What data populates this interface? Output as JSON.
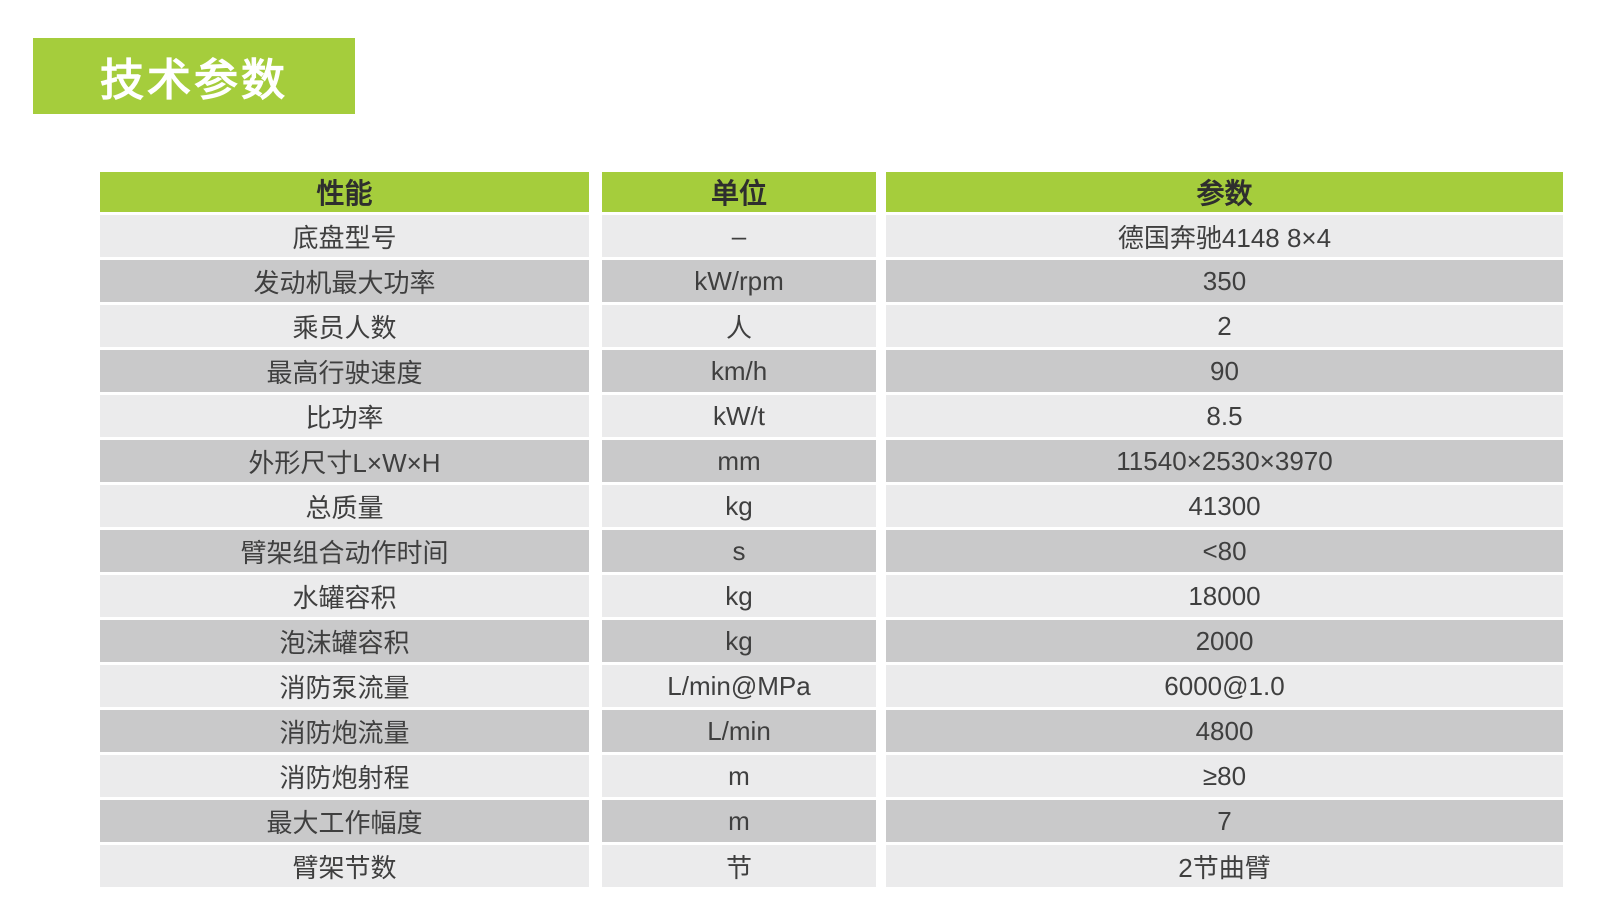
{
  "title_banner": {
    "label": "技术参数"
  },
  "colors": {
    "accent_green": "#a5cd3c",
    "row_light": "#ebebec",
    "row_dark": "#c9c9ca",
    "header_text": "#2e2e2e",
    "body_text": "#3f3f3f",
    "title_text": "#ffffff"
  },
  "table": {
    "headers": [
      "性能",
      "单位",
      "参数"
    ],
    "rows": [
      {
        "performance": "底盘型号",
        "unit": "–",
        "value": "德国奔驰4148 8×4"
      },
      {
        "performance": "发动机最大功率",
        "unit": "kW/rpm",
        "value": "350"
      },
      {
        "performance": "乘员人数",
        "unit": "人",
        "value": "2"
      },
      {
        "performance": "最高行驶速度",
        "unit": "km/h",
        "value": "90"
      },
      {
        "performance": "比功率",
        "unit": "kW/t",
        "value": "8.5"
      },
      {
        "performance": "外形尺寸L×W×H",
        "unit": "mm",
        "value": "11540×2530×3970"
      },
      {
        "performance": "总质量",
        "unit": "kg",
        "value": "41300"
      },
      {
        "performance": "臂架组合动作时间",
        "unit": "s",
        "value": "<80"
      },
      {
        "performance": "水罐容积",
        "unit": "kg",
        "value": "18000"
      },
      {
        "performance": "泡沫罐容积",
        "unit": "kg",
        "value": "2000"
      },
      {
        "performance": "消防泵流量",
        "unit": "L/min@MPa",
        "value": "6000@1.0"
      },
      {
        "performance": "消防炮流量",
        "unit": "L/min",
        "value": "4800"
      },
      {
        "performance": "消防炮射程",
        "unit": "m",
        "value": "≥80"
      },
      {
        "performance": "最大工作幅度",
        "unit": "m",
        "value": "7"
      },
      {
        "performance": "臂架节数",
        "unit": "节",
        "value": "2节曲臂"
      }
    ]
  }
}
